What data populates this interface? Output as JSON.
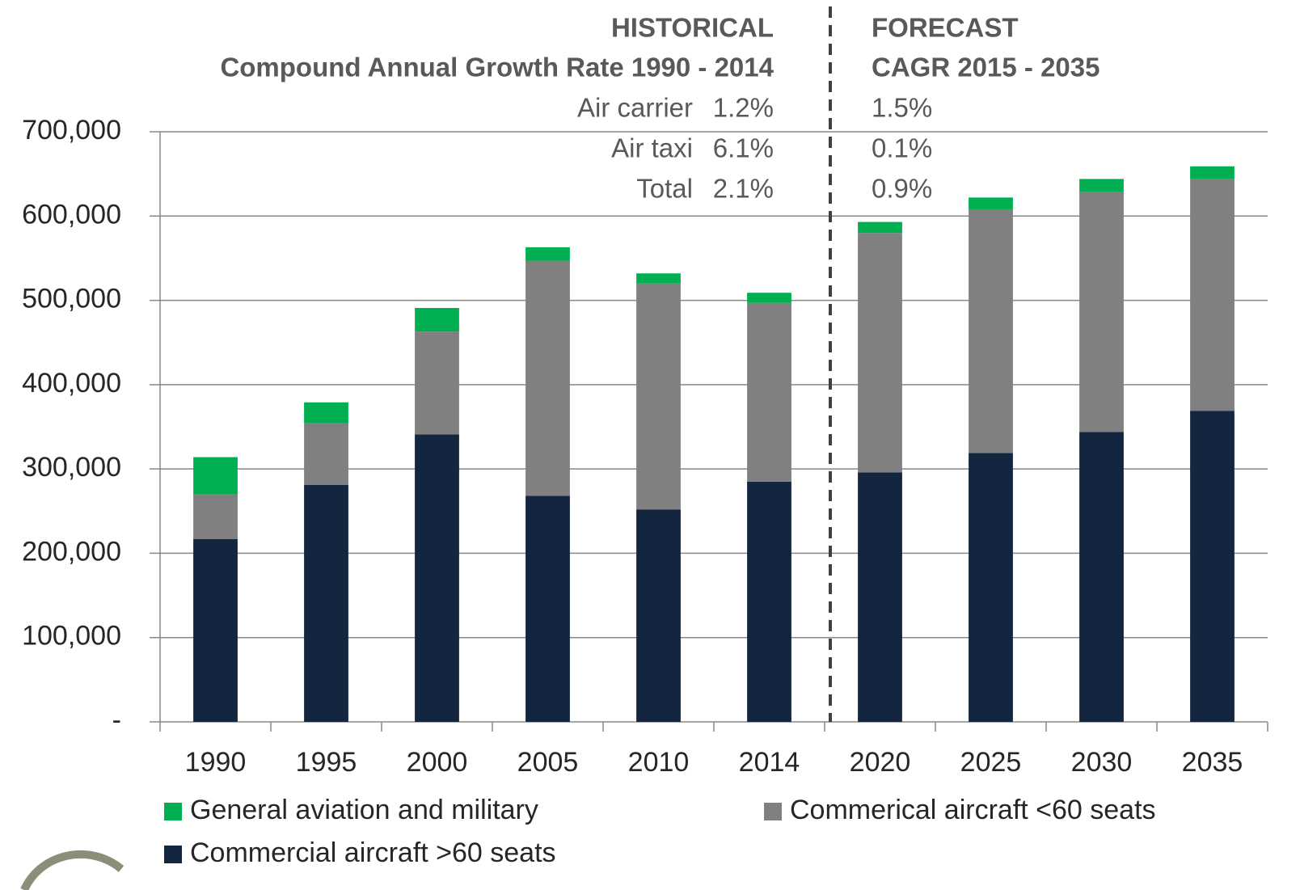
{
  "chart_data": {
    "type": "stacked_bar",
    "categories": [
      "1990",
      "1995",
      "2000",
      "2005",
      "2010",
      "2014",
      "2020",
      "2025",
      "2030",
      "2035"
    ],
    "series": [
      {
        "name": "Commercial aircraft >60 seats",
        "color": "#13253f",
        "values": [
          217000,
          281000,
          341000,
          268000,
          252000,
          285000,
          296000,
          319000,
          344000,
          369000
        ]
      },
      {
        "name": "Commerical aircraft <60 seats",
        "color": "#808080",
        "values": [
          53000,
          73000,
          122000,
          279000,
          268000,
          212000,
          284000,
          289000,
          285000,
          275000
        ]
      },
      {
        "name": "General aviation and military",
        "color": "#00b050",
        "values": [
          44000,
          25000,
          28000,
          16000,
          12000,
          12000,
          13000,
          14000,
          15000,
          15000
        ]
      }
    ],
    "ylim": [
      0,
      700000
    ],
    "yticks": [
      {
        "value": 0,
        "label": "-"
      },
      {
        "value": 100000,
        "label": "100,000"
      },
      {
        "value": 200000,
        "label": "200,000"
      },
      {
        "value": 300000,
        "label": "300,000"
      },
      {
        "value": 400000,
        "label": "400,000"
      },
      {
        "value": 500000,
        "label": "500,000"
      },
      {
        "value": 600000,
        "label": "600,000"
      },
      {
        "value": 700000,
        "label": "700,000"
      }
    ],
    "grid": true,
    "annotations": {
      "historical": {
        "title": "HISTORICAL",
        "subtitle": "Compound Annual Growth Rate 1990 - 2014",
        "rows": [
          {
            "label": "Air carrier",
            "value": "1.2%"
          },
          {
            "label": "Air taxi",
            "value": "6.1%"
          },
          {
            "label": "Total",
            "value": "2.1%"
          }
        ]
      },
      "forecast": {
        "title": "FORECAST",
        "subtitle": "CAGR 2015 - 2035",
        "rows": [
          "1.5%",
          "0.1%",
          "0.9%"
        ]
      }
    }
  }
}
